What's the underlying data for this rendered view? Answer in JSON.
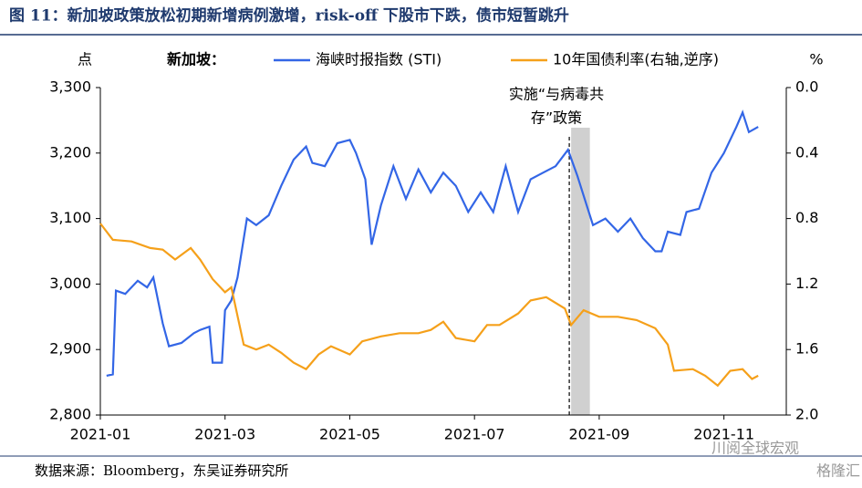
{
  "chart_data": {
    "type": "line",
    "title": "图 11：新加坡政策放松初期新增病例激增，risk-off 下股市下跌，债市短暂跳升",
    "y_label": "点",
    "y2_label": "%",
    "legend_title": "新加坡：",
    "annotation": [
      "实施“与病毒共存”政策",
      "存”政策"
    ],
    "source": "数据来源：Bloomberg，东吴证券研究所",
    "watermark": [
      "川阅全球宏观",
      "格隆汇"
    ],
    "xlim": [
      1,
      12
    ],
    "xticks": [
      {
        "value": 1,
        "label": "2021-01"
      },
      {
        "value": 3,
        "label": "2021-03"
      },
      {
        "value": 5,
        "label": "2021-05"
      },
      {
        "value": 7,
        "label": "2021-07"
      },
      {
        "value": 9,
        "label": "2021-09"
      },
      {
        "value": 11,
        "label": "2021-11"
      }
    ],
    "ylim": [
      2800,
      3300
    ],
    "yticks": [
      {
        "value": 2800,
        "label": "2,800"
      },
      {
        "value": 2900,
        "label": "2,900"
      },
      {
        "value": 3000,
        "label": "3,000"
      },
      {
        "value": 3100,
        "label": "3,100"
      },
      {
        "value": 3200,
        "label": "3,200"
      },
      {
        "value": 3300,
        "label": "3,300"
      }
    ],
    "y2lim": [
      0,
      2
    ],
    "y2_inverted": true,
    "y2ticks": [
      {
        "value": 0,
        "label": "0.0"
      },
      0.4,
      0.8,
      1.2,
      1.6,
      {
        "value": 2,
        "label": "2.0"
      }
    ],
    "shaded_x": [
      8.55,
      8.85
    ],
    "event_x": 8.52,
    "series": [
      {
        "name": "海峡时报指数 (STI)",
        "color": "#3366e6",
        "x": [
          1.1,
          1.2,
          1.25,
          1.4,
          1.6,
          1.75,
          1.85,
          2.0,
          2.1,
          2.3,
          2.5,
          2.6,
          2.75,
          2.8,
          2.95,
          3.0,
          3.1,
          3.2,
          3.35,
          3.5,
          3.7,
          3.9,
          4.1,
          4.3,
          4.4,
          4.6,
          4.8,
          5.0,
          5.1,
          5.25,
          5.35,
          5.5,
          5.7,
          5.9,
          6.1,
          6.3,
          6.5,
          6.7,
          6.9,
          7.1,
          7.3,
          7.5,
          7.7,
          7.9,
          8.1,
          8.3,
          8.5,
          8.65,
          8.8,
          8.9,
          9.1,
          9.3,
          9.5,
          9.7,
          9.9,
          10.0,
          10.1,
          10.3,
          10.4,
          10.6,
          10.8,
          11.0,
          11.2,
          11.3,
          11.4,
          11.55
        ],
        "values": [
          2860,
          2862,
          2990,
          2985,
          3005,
          2995,
          3010,
          2940,
          2905,
          2910,
          2925,
          2930,
          2935,
          2880,
          2880,
          2960,
          2975,
          3010,
          3100,
          3090,
          3105,
          3150,
          3190,
          3210,
          3185,
          3180,
          3215,
          3220,
          3200,
          3160,
          3060,
          3120,
          3180,
          3130,
          3175,
          3140,
          3170,
          3150,
          3110,
          3140,
          3110,
          3180,
          3110,
          3160,
          3170,
          3180,
          3205,
          3165,
          3120,
          3090,
          3100,
          3080,
          3100,
          3070,
          3050,
          3050,
          3080,
          3075,
          3110,
          3115,
          3170,
          3200,
          3240,
          3262,
          3232,
          3240
        ]
      },
      {
        "name": "10年国债利率(右轴,逆序)",
        "color": "#f5a01a",
        "axis": "y2",
        "x": [
          1.0,
          1.2,
          1.5,
          1.8,
          2.0,
          2.2,
          2.45,
          2.6,
          2.8,
          3.0,
          3.1,
          3.3,
          3.5,
          3.7,
          3.9,
          4.1,
          4.3,
          4.5,
          4.7,
          5.0,
          5.2,
          5.5,
          5.8,
          6.1,
          6.3,
          6.5,
          6.7,
          7.0,
          7.2,
          7.4,
          7.7,
          7.9,
          8.15,
          8.45,
          8.55,
          8.75,
          9.0,
          9.3,
          9.6,
          9.9,
          10.1,
          10.2,
          10.5,
          10.7,
          10.9,
          11.1,
          11.3,
          11.45,
          11.55
        ],
        "values": [
          0.83,
          0.93,
          0.94,
          0.98,
          0.99,
          1.05,
          0.98,
          1.05,
          1.17,
          1.25,
          1.22,
          1.57,
          1.6,
          1.57,
          1.62,
          1.68,
          1.72,
          1.63,
          1.58,
          1.63,
          1.55,
          1.52,
          1.5,
          1.5,
          1.48,
          1.43,
          1.53,
          1.55,
          1.45,
          1.45,
          1.38,
          1.3,
          1.28,
          1.35,
          1.45,
          1.36,
          1.4,
          1.4,
          1.42,
          1.47,
          1.57,
          1.73,
          1.72,
          1.76,
          1.82,
          1.73,
          1.72,
          1.78,
          1.76
        ]
      }
    ]
  }
}
